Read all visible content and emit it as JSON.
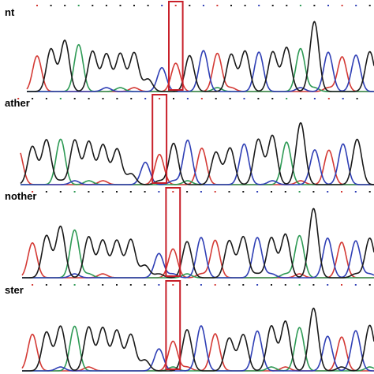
{
  "chart_data": {
    "type": "line",
    "panels": [
      {
        "label": "nt",
        "bases": "TGGAGGGGGCTGCTGGCGGAGCTCG",
        "highlight_index": 10
      },
      {
        "label": "ather",
        "bases": "TGGAGGGGGCTGCTGGCGGAGCTCG",
        "highlight_index": 10
      },
      {
        "label": "nother",
        "bases": "TGGAGGGGGCTGCTGGCGGAGCTCG",
        "highlight_index": 10
      },
      {
        "label": "ster",
        "bases": "TGGAGGGGGCTGCTGGCGGAGCTCG",
        "highlight_index": 10
      }
    ],
    "base_colors": {
      "G": "#1a1a1a",
      "A": "#2e9a55",
      "T": "#d43a35",
      "C": "#2f3fb5"
    },
    "highlight_color": "#c8202a"
  }
}
